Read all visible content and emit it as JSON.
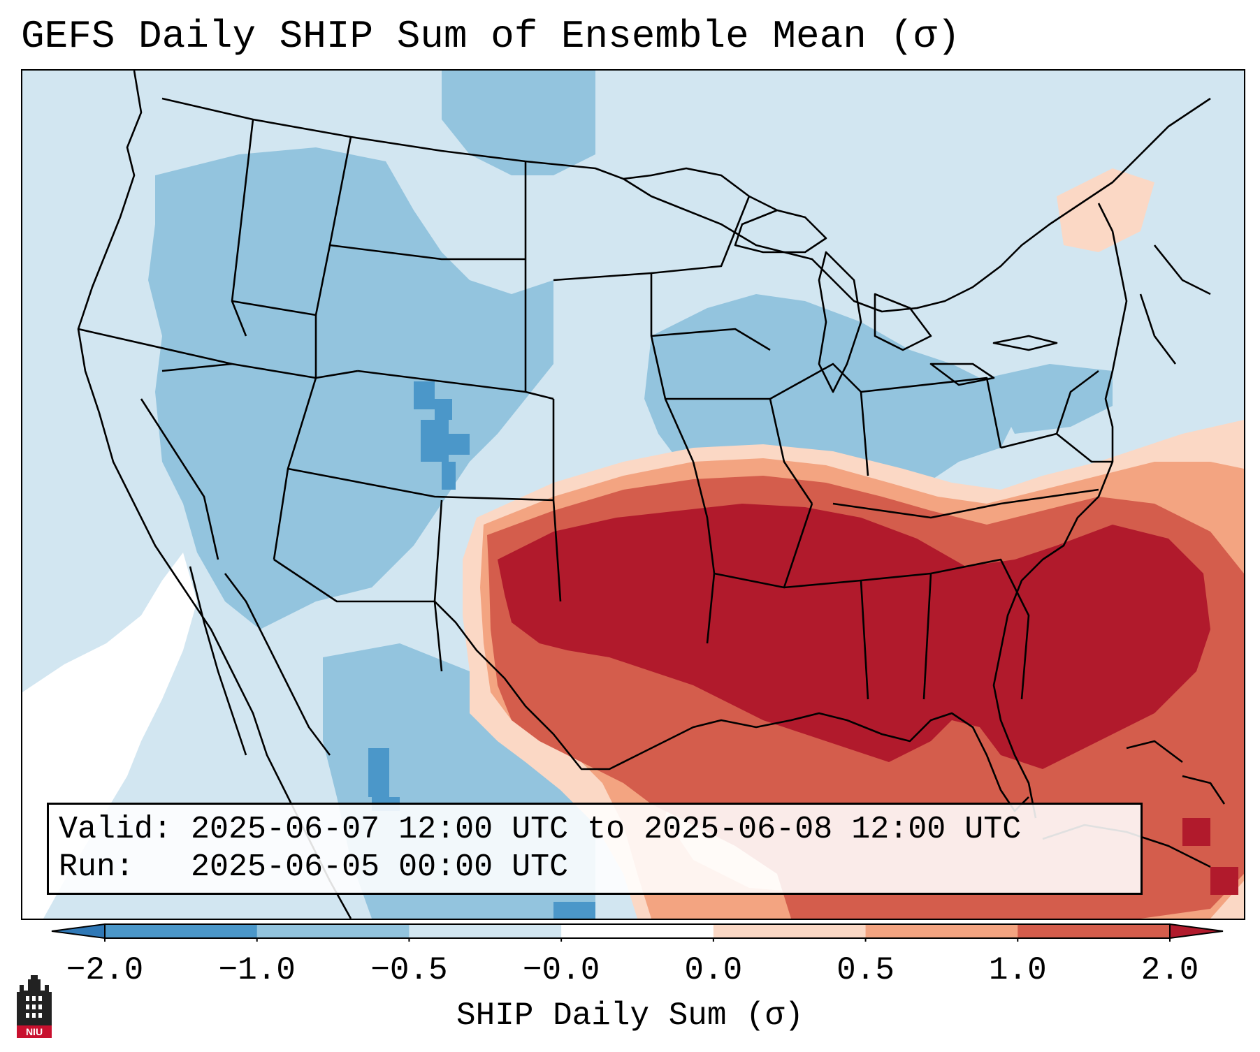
{
  "figure": {
    "title": "GEFS Daily SHIP Sum of Ensemble Mean (σ)"
  },
  "info_box": {
    "valid_label": "Valid:",
    "valid_value": "2025-06-07 12:00 UTC to 2025-06-08 12:00 UTC",
    "run_label": "Run:",
    "run_value": "2025-06-05 00:00 UTC"
  },
  "colorbar": {
    "label": "SHIP Daily Sum (σ)",
    "ticks": [
      "−2.0",
      "−1.0",
      "−0.5",
      "−0.0",
      "0.0",
      "0.5",
      "1.0",
      "2.0"
    ],
    "bins": [
      {
        "range": "< -2.0",
        "color": "#2f78b6"
      },
      {
        "range": "-2.0 to -1.0",
        "color": "#4b97c9"
      },
      {
        "range": "-1.0 to -0.5",
        "color": "#93c4de"
      },
      {
        "range": "-0.5 to -0.0",
        "color": "#d2e6f1"
      },
      {
        "range": "-0.0 to 0.0",
        "color": "#ffffff"
      },
      {
        "range": "0.0 to 0.5",
        "color": "#fbd8c5"
      },
      {
        "range": "0.5 to 1.0",
        "color": "#f3a481"
      },
      {
        "range": "1.0 to 2.0",
        "color": "#d45d4c"
      },
      {
        "range": "> 2.0",
        "color": "#b11a2c"
      }
    ]
  },
  "logo": {
    "text": "NIU"
  },
  "colors": {
    "strong_negative": "#4b97c9",
    "negative": "#93c4de",
    "weak_negative": "#d2e6f1",
    "neutral": "#ffffff",
    "weak_positive": "#fbd8c5",
    "positive": "#f3a481",
    "strong_positive": "#d45d4c",
    "extreme_positive": "#b11a2c"
  }
}
